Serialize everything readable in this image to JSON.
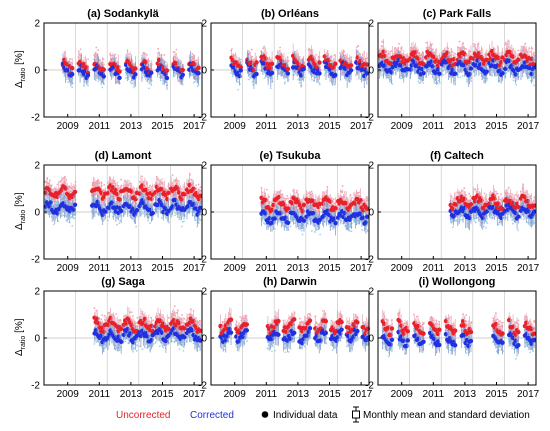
{
  "figure": {
    "ylabel_main": "Δ",
    "ylabel_sub": "ratio",
    "ylabel_unit": " [%]",
    "legend": {
      "uncorrected": "Uncorrected",
      "corrected": "Corrected",
      "individual": "Individual data",
      "monthly": "Monthly mean and standard deviation"
    },
    "colors": {
      "uncorrected": "#e8202a",
      "corrected": "#2030e0",
      "uncorrected_scatter": "#f4a6b4",
      "corrected_scatter": "#9fd4ec",
      "errorbar": "#7a92c8"
    }
  },
  "chart_data": [
    {
      "type": "scatter",
      "title": "(a) Sodankylä",
      "xlim": [
        2008,
        2018
      ],
      "ylim": [
        -2,
        2
      ],
      "xticks": [
        "2009",
        "2011",
        "2013",
        "2015",
        "2017"
      ],
      "yticks": [
        "2",
        "0",
        "-2"
      ],
      "year_ranges": [
        [
          2009.2,
          2009.8
        ],
        [
          2010.2,
          2010.8
        ],
        [
          2011.2,
          2011.8
        ],
        [
          2012.2,
          2012.8
        ],
        [
          2013.2,
          2013.8
        ],
        [
          2014.2,
          2014.8
        ],
        [
          2015.2,
          2015.8
        ],
        [
          2016.2,
          2016.8
        ],
        [
          2017.2,
          2017.8
        ]
      ],
      "series": [
        {
          "name": "Uncorrected",
          "level": 0.15
        },
        {
          "name": "Corrected",
          "level": -0.05
        }
      ]
    },
    {
      "type": "scatter",
      "title": "(b) Orléans",
      "xlim": [
        2008,
        2018
      ],
      "ylim": [
        -2,
        2
      ],
      "xticks": [
        "2009",
        "2011",
        "2013",
        "2015",
        "2017"
      ],
      "yticks": [
        "2",
        "0",
        "-2"
      ],
      "year_ranges": [
        [
          2009.3,
          2009.9
        ],
        [
          2010.3,
          2010.9
        ],
        [
          2011.2,
          2011.9
        ],
        [
          2012.2,
          2012.9
        ],
        [
          2013.2,
          2013.9
        ],
        [
          2014.2,
          2014.9
        ],
        [
          2015.2,
          2015.9
        ],
        [
          2016.2,
          2016.9
        ],
        [
          2017.2,
          2017.9
        ]
      ],
      "series": [
        {
          "name": "Uncorrected",
          "level": 0.3
        },
        {
          "name": "Corrected",
          "level": 0.05
        }
      ]
    },
    {
      "type": "scatter",
      "title": "(c) Park Falls",
      "xlim": [
        2008,
        2018
      ],
      "ylim": [
        -2,
        2
      ],
      "xticks": [
        "2009",
        "2011",
        "2013",
        "2015",
        "2017"
      ],
      "yticks": [
        "2",
        "0",
        "-2"
      ],
      "year_ranges": [
        [
          2008.1,
          2008.95
        ],
        [
          2009.05,
          2009.95
        ],
        [
          2010.05,
          2010.95
        ],
        [
          2011.05,
          2011.95
        ],
        [
          2012.05,
          2012.95
        ],
        [
          2013.05,
          2013.95
        ],
        [
          2014.05,
          2014.95
        ],
        [
          2015.05,
          2015.95
        ],
        [
          2016.05,
          2016.95
        ],
        [
          2017.05,
          2017.95
        ]
      ],
      "series": [
        {
          "name": "Uncorrected",
          "level": 0.5
        },
        {
          "name": "Corrected",
          "level": 0.1
        }
      ]
    },
    {
      "type": "scatter",
      "title": "(d) Lamont",
      "xlim": [
        2008,
        2018
      ],
      "ylim": [
        -2,
        2
      ],
      "xticks": [
        "2009",
        "2011",
        "2013",
        "2015",
        "2017"
      ],
      "yticks": [
        "2",
        "0",
        "-2"
      ],
      "year_ranges": [
        [
          2008.1,
          2009.0
        ],
        [
          2009.05,
          2010.0
        ],
        [
          2011.05,
          2011.95
        ],
        [
          2012.05,
          2012.95
        ],
        [
          2013.05,
          2013.95
        ],
        [
          2014.05,
          2014.95
        ],
        [
          2015.05,
          2015.95
        ],
        [
          2016.05,
          2016.95
        ],
        [
          2017.05,
          2017.95
        ]
      ],
      "series": [
        {
          "name": "Uncorrected",
          "level": 0.85
        },
        {
          "name": "Corrected",
          "level": 0.2
        }
      ]
    },
    {
      "type": "scatter",
      "title": "(e) Tsukuba",
      "xlim": [
        2008,
        2018
      ],
      "ylim": [
        -2,
        2
      ],
      "xticks": [
        "2009",
        "2011",
        "2013",
        "2015",
        "2017"
      ],
      "yticks": [
        "2",
        "0",
        "-2"
      ],
      "year_ranges": [
        [
          2011.2,
          2011.95
        ],
        [
          2012.05,
          2012.95
        ],
        [
          2013.05,
          2013.95
        ],
        [
          2014.05,
          2014.95
        ],
        [
          2015.05,
          2015.95
        ],
        [
          2016.05,
          2016.95
        ],
        [
          2017.05,
          2017.95
        ]
      ],
      "series": [
        {
          "name": "Uncorrected",
          "level": 0.35
        },
        {
          "name": "Corrected",
          "level": -0.2
        }
      ]
    },
    {
      "type": "scatter",
      "title": "(f) Caltech",
      "xlim": [
        2008,
        2018
      ],
      "ylim": [
        -2,
        2
      ],
      "xticks": [
        "2009",
        "2011",
        "2013",
        "2015",
        "2017"
      ],
      "yticks": [
        "2",
        "0",
        "-2"
      ],
      "year_ranges": [
        [
          2012.6,
          2012.95
        ],
        [
          2013.05,
          2013.95
        ],
        [
          2014.05,
          2014.95
        ],
        [
          2015.05,
          2015.95
        ],
        [
          2016.05,
          2016.95
        ],
        [
          2017.05,
          2017.95
        ]
      ],
      "series": [
        {
          "name": "Uncorrected",
          "level": 0.4
        },
        {
          "name": "Corrected",
          "level": 0.0
        }
      ]
    },
    {
      "type": "scatter",
      "title": "(g) Saga",
      "xlim": [
        2008,
        2018
      ],
      "ylim": [
        -2,
        2
      ],
      "xticks": [
        "2009",
        "2011",
        "2013",
        "2015",
        "2017"
      ],
      "yticks": [
        "2",
        "0",
        "-2"
      ],
      "year_ranges": [
        [
          2011.2,
          2011.95
        ],
        [
          2012.05,
          2012.95
        ],
        [
          2013.05,
          2013.95
        ],
        [
          2014.05,
          2014.95
        ],
        [
          2015.05,
          2015.95
        ],
        [
          2016.05,
          2016.95
        ],
        [
          2017.05,
          2017.95
        ]
      ],
      "series": [
        {
          "name": "Uncorrected",
          "level": 0.55
        },
        {
          "name": "Corrected",
          "level": 0.1
        }
      ]
    },
    {
      "type": "scatter",
      "title": "(h) Darwin",
      "xlim": [
        2008,
        2018
      ],
      "ylim": [
        -2,
        2
      ],
      "xticks": [
        "2009",
        "2011",
        "2013",
        "2015",
        "2017"
      ],
      "yticks": [
        "2",
        "0",
        "-2"
      ],
      "year_ranges": [
        [
          2008.6,
          2009.3
        ],
        [
          2009.6,
          2010.3
        ],
        [
          2011.6,
          2012.3
        ],
        [
          2012.6,
          2013.3
        ],
        [
          2013.6,
          2014.3
        ],
        [
          2014.6,
          2015.3
        ],
        [
          2015.6,
          2016.3
        ],
        [
          2016.6,
          2017.3
        ],
        [
          2017.6,
          2017.95
        ]
      ],
      "series": [
        {
          "name": "Uncorrected",
          "level": 0.5
        },
        {
          "name": "Corrected",
          "level": 0.1
        }
      ]
    },
    {
      "type": "scatter",
      "title": "(i) Wollongong",
      "xlim": [
        2008,
        2018
      ],
      "ylim": [
        -2,
        2
      ],
      "xticks": [
        "2009",
        "2011",
        "2013",
        "2015",
        "2017"
      ],
      "yticks": [
        "2",
        "0",
        "-2"
      ],
      "year_ranges": [
        [
          2008.3,
          2008.9
        ],
        [
          2009.3,
          2009.9
        ],
        [
          2010.3,
          2010.9
        ],
        [
          2011.3,
          2011.9
        ],
        [
          2012.3,
          2012.9
        ],
        [
          2013.3,
          2013.9
        ],
        [
          2015.3,
          2015.9
        ],
        [
          2016.3,
          2016.9
        ],
        [
          2017.3,
          2017.9
        ]
      ],
      "series": [
        {
          "name": "Uncorrected",
          "level": 0.45
        },
        {
          "name": "Corrected",
          "level": -0.05
        }
      ]
    }
  ]
}
